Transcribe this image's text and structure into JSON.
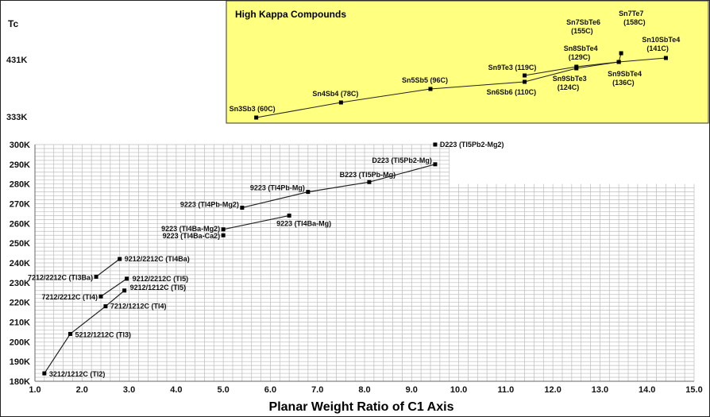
{
  "chart_data": {
    "type": "scatter",
    "xlabel": "Planar Weight Ratio of C1 Axis",
    "ylabel": "Tc",
    "xlim": [
      1.0,
      15.0
    ],
    "ylim": [
      180,
      300
    ],
    "xticks": [
      "1.0",
      "2.0",
      "3.0",
      "4.0",
      "5.0",
      "6.0",
      "7.0",
      "8.0",
      "9.0",
      "10.0",
      "11.0",
      "12.0",
      "13.0",
      "14.0",
      "15.0"
    ],
    "yticks": [
      {
        "value": 180,
        "label": "180K"
      },
      {
        "value": 190,
        "label": "190K"
      },
      {
        "value": 200,
        "label": "200K"
      },
      {
        "value": 210,
        "label": "210K"
      },
      {
        "value": 220,
        "label": "220K"
      },
      {
        "value": 230,
        "label": "230K"
      },
      {
        "value": 240,
        "label": "240K"
      },
      {
        "value": 250,
        "label": "250K"
      },
      {
        "value": 260,
        "label": "260K"
      },
      {
        "value": 270,
        "label": "270K"
      },
      {
        "value": 280,
        "label": "280K"
      },
      {
        "value": 290,
        "label": "290K"
      },
      {
        "value": 300,
        "label": "300K"
      }
    ],
    "upper_ticks": [
      "333K",
      "431K"
    ],
    "grid": true,
    "cuprate_series": [
      {
        "name": "",
        "points": [
          {
            "x": 1.2,
            "y": 184,
            "label": "3212/1212C (Tl2)"
          },
          {
            "x": 1.75,
            "y": 204,
            "label": "5212/1212C (Tl3)"
          },
          {
            "x": 2.5,
            "y": 218,
            "label": "7212/1212C (Tl4)"
          },
          {
            "x": 2.9,
            "y": 226,
            "label": "9212/1212C (Tl5)"
          }
        ]
      },
      {
        "name": "",
        "points": [
          {
            "x": 2.4,
            "y": 223,
            "label": "7212/2212C (Tl4)"
          },
          {
            "x": 2.95,
            "y": 232,
            "label": "9212/2212C (Tl5)"
          }
        ]
      },
      {
        "name": "",
        "points": [
          {
            "x": 2.3,
            "y": 233,
            "label": "7212/2212C (Tl3Ba)"
          },
          {
            "x": 2.8,
            "y": 242,
            "label": "9212/2212C (Tl4Ba)"
          }
        ]
      },
      {
        "name": "",
        "points": [
          {
            "x": 5.0,
            "y": 254,
            "label": "9223 (Tl4Ba-Ca2)"
          }
        ]
      },
      {
        "name": "",
        "points": [
          {
            "x": 5.0,
            "y": 257,
            "label": "9223 (Tl4Ba-Mg2)"
          },
          {
            "x": 6.4,
            "y": 264,
            "label": "9223 (Tl4Ba-Mg)"
          }
        ]
      },
      {
        "name": "",
        "points": [
          {
            "x": 5.4,
            "y": 268,
            "label": "9223 (Tl4Pb-Mg2)"
          },
          {
            "x": 6.8,
            "y": 276,
            "label": "9223 (Tl4Pb-Mg)"
          },
          {
            "x": 8.1,
            "y": 281,
            "label": "B223 (Tl5Pb-Mg)"
          },
          {
            "x": 9.5,
            "y": 290,
            "label": "D223 (Tl5Pb2-Mg)"
          }
        ]
      },
      {
        "name": "",
        "points": [
          {
            "x": 9.5,
            "y": 300,
            "label": "D223 (Tl5Pb2-Mg2)"
          }
        ]
      }
    ],
    "inset": {
      "title": "High Kappa Compounds",
      "background": "#ffff80",
      "series": [
        {
          "name": "",
          "points": [
            {
              "x": 5.7,
              "label": "Sn3Sb3 (60C)"
            },
            {
              "x": 7.5,
              "label": "Sn4Sb4 (78C)"
            },
            {
              "x": 9.4,
              "label": "Sn5Sb5 (96C)"
            },
            {
              "x": 11.4,
              "label": "Sn6Sb6 (110C)"
            },
            {
              "x": 12.5,
              "label": "Sn9SbTe3 (124C)"
            },
            {
              "x": 13.4,
              "label": "Sn9SbTe4 (136C)"
            },
            {
              "x": 14.4,
              "label": "Sn10SbTe4 (141C)"
            }
          ]
        },
        {
          "name": "",
          "points": [
            {
              "x": 11.4,
              "label": "Sn9Te3 (119C)"
            },
            {
              "x": 12.5,
              "label": "Sn8SbTe4 (129C)"
            },
            {
              "x": 13.4,
              "label": "Sn7SbTe6 (155C)"
            },
            {
              "x": 13.45,
              "label": "Sn7Te7 (158C)"
            }
          ]
        }
      ]
    }
  }
}
